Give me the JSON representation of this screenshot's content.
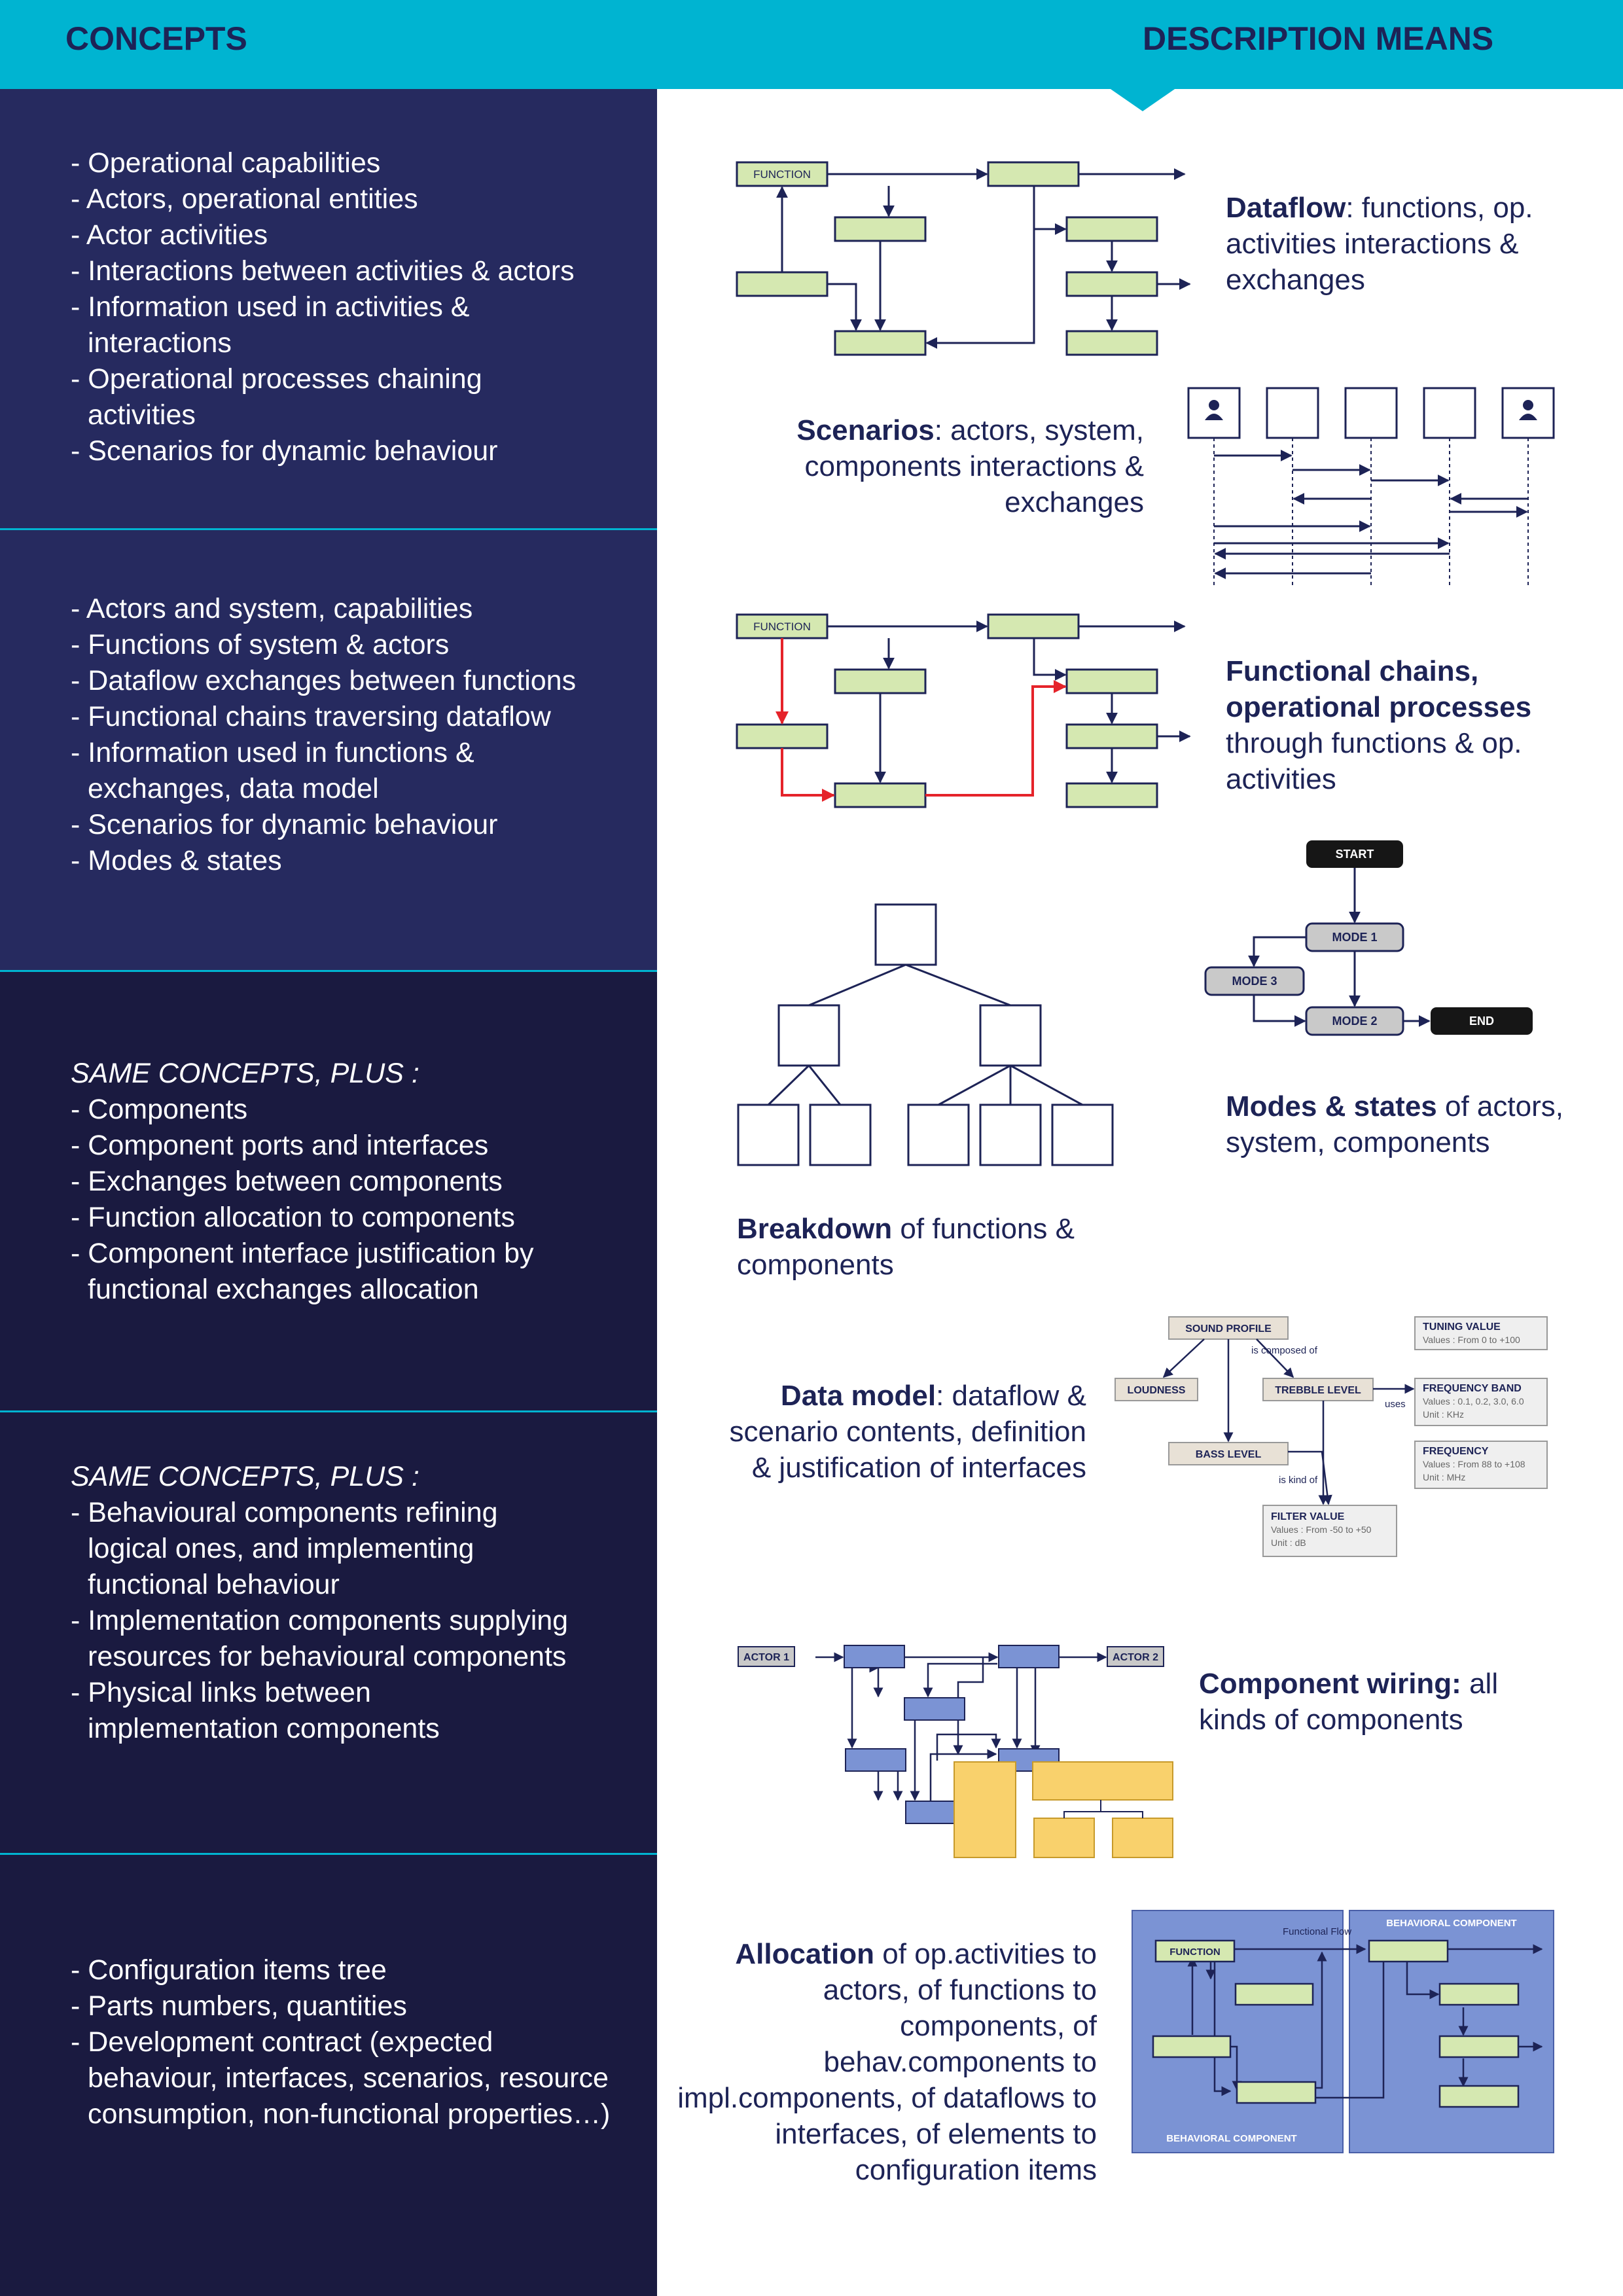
{
  "header": {
    "concepts_title": "CONCEPTS",
    "description_title": "DESCRIPTION MEANS"
  },
  "concepts": [
    {
      "items": [
        "Operational capabilities",
        "Actors, operational entities",
        "Actor activities",
        "Interactions between activities & actors",
        "Information used in activities & interactions",
        "Operational processes chaining activities",
        "Scenarios for dynamic behaviour"
      ]
    },
    {
      "items": [
        "Actors and system, capabilities",
        "Functions of system & actors",
        "Dataflow exchanges between functions",
        "Functional chains traversing dataflow",
        "Information used in functions & exchanges, data model",
        "Scenarios for dynamic behaviour",
        "Modes & states"
      ]
    },
    {
      "heading": "SAME CONCEPTS, PLUS :",
      "items": [
        "Components",
        "Component ports and interfaces",
        "Exchanges between components",
        "Function allocation to components",
        "Component interface justification by functional exchanges allocation"
      ]
    },
    {
      "heading": "SAME CONCEPTS, PLUS :",
      "items": [
        "Behavioural components refining logical ones, and implementing functional behaviour",
        "Implementation components supplying resources for behavioural components",
        "Physical links between implementation components"
      ]
    },
    {
      "items": [
        "Configuration items tree",
        "Parts numbers, quantities",
        "Development contract (expected behaviour, interfaces, scenarios, resource consumption, non-functional properties…)"
      ]
    }
  ],
  "descriptions": {
    "dataflow": {
      "bold": "Dataflow",
      "rest": ": functions, op. activities interactions & exchanges"
    },
    "scenarios": {
      "bold": "Scenarios",
      "rest": ": actors, system, components interactions & exchanges"
    },
    "functional_chains": {
      "bold": "Functional chains, operational processes",
      "rest": " through functions & op. activities"
    },
    "modes_states": {
      "bold": "Modes & states",
      "rest": " of actors, system, components"
    },
    "breakdown": {
      "bold": "Breakdown",
      "rest": " of functions & components"
    },
    "data_model": {
      "bold": "Data model",
      "rest": ": dataflow & scenario contents, definition & justification of interfaces"
    },
    "component_wiring": {
      "bold": "Component wiring:",
      "rest": " all kinds of components"
    },
    "allocation": {
      "bold": "Allocation",
      "rest": " of op.activities to actors, of functions to components, of behav.components to impl.components, of dataflows to interfaces, of elements to configuration items"
    }
  },
  "diagram_labels": {
    "function": "FUNCTION",
    "start": "START",
    "mode1": "MODE 1",
    "mode2": "MODE 2",
    "mode3": "MODE 3",
    "end": "END",
    "sound_profile": "SOUND PROFILE",
    "is_composed_of": "is composed of",
    "loudness": "LOUDNESS",
    "trebble_level": "TREBBLE LEVEL",
    "bass_level": "BASS LEVEL",
    "uses": "uses",
    "is_kind_of": "is kind of",
    "filter_value": "FILTER VALUE",
    "filter_values": "Values : From -50 to +50",
    "filter_unit": "Unit : dB",
    "tuning_value": "TUNING VALUE",
    "tuning_values": "Values : From 0 to +100",
    "frequency_band": "FREQUENCY BAND",
    "frequency_band_values": "Values : 0.1, 0.2, 3.0, 6.0",
    "frequency_band_unit": "Unit : KHz",
    "frequency": "FREQUENCY",
    "frequency_values": "Values : From 88 to +108",
    "frequency_unit": "Unit : MHz",
    "actor1": "ACTOR 1",
    "actor2": "ACTOR 2",
    "behavioral_component": "BEHAVIORAL COMPONENT",
    "functional_flow": "Functional Flow"
  },
  "colors": {
    "header": "#00b4d1",
    "band_upper": "#262a5f",
    "band_lower": "#1a1a40",
    "navy": "#1d2356",
    "function_fill": "#d5e8b1",
    "chain_red": "#e5232a",
    "component_blue": "#7b93d4",
    "impl_yellow": "#f9d16c",
    "data_beige": "#e8e1d6"
  }
}
